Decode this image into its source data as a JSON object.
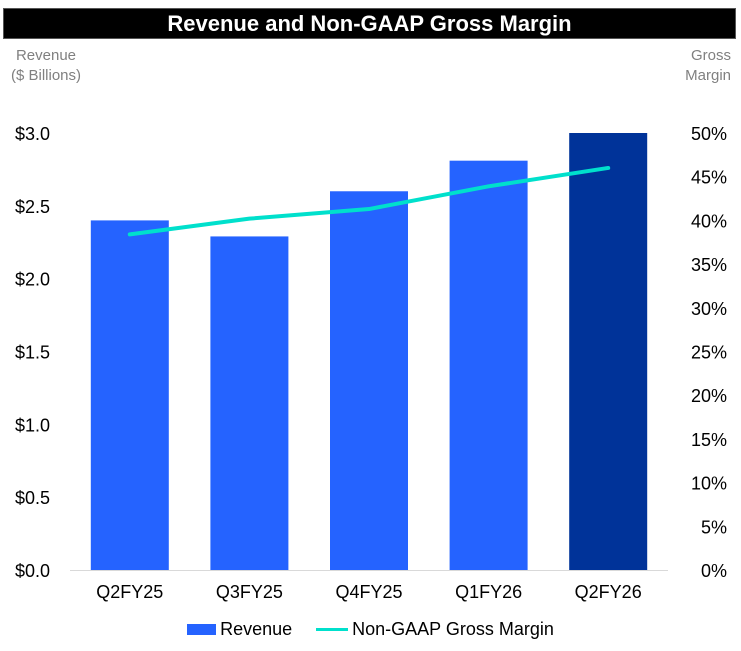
{
  "header": {
    "title": "Revenue and Non-GAAP Gross Margin"
  },
  "axes": {
    "left_title_line1": "Revenue",
    "left_title_line2": "($ Billions)",
    "right_title_line1": "Gross",
    "right_title_line2": "Margin"
  },
  "legend": {
    "revenue": "Revenue",
    "margin": "Non-GAAP Gross Margin"
  },
  "colors": {
    "bar": "#2563ff",
    "bar_highlight": "#003399",
    "line": "#00e0cc"
  },
  "chart_data": {
    "type": "bar",
    "title": "Revenue and Non-GAAP Gross Margin",
    "categories": [
      "Q2FY25",
      "Q3FY25",
      "Q4FY25",
      "Q1FY26",
      "Q2FY26"
    ],
    "series": [
      {
        "name": "Revenue",
        "type": "bar",
        "axis": "left",
        "values": [
          2.4,
          2.29,
          2.6,
          2.81,
          3.0
        ]
      },
      {
        "name": "Non-GAAP Gross Margin",
        "type": "line",
        "axis": "right",
        "values": [
          38.4,
          40.2,
          41.3,
          43.9,
          46.0
        ]
      }
    ],
    "ylabel": "Revenue ($ Billions)",
    "ylabel_right": "Gross Margin",
    "ylim": [
      0,
      3.0
    ],
    "ylim_right": [
      0,
      50
    ],
    "yticks": [
      "$0.0",
      "$0.5",
      "$1.0",
      "$1.5",
      "$2.0",
      "$2.5",
      "$3.0"
    ],
    "yticks_right": [
      "0%",
      "5%",
      "10%",
      "15%",
      "20%",
      "25%",
      "30%",
      "35%",
      "40%",
      "45%",
      "50%"
    ],
    "highlight_last_bar": true,
    "grid": false,
    "legend_position": "bottom"
  }
}
